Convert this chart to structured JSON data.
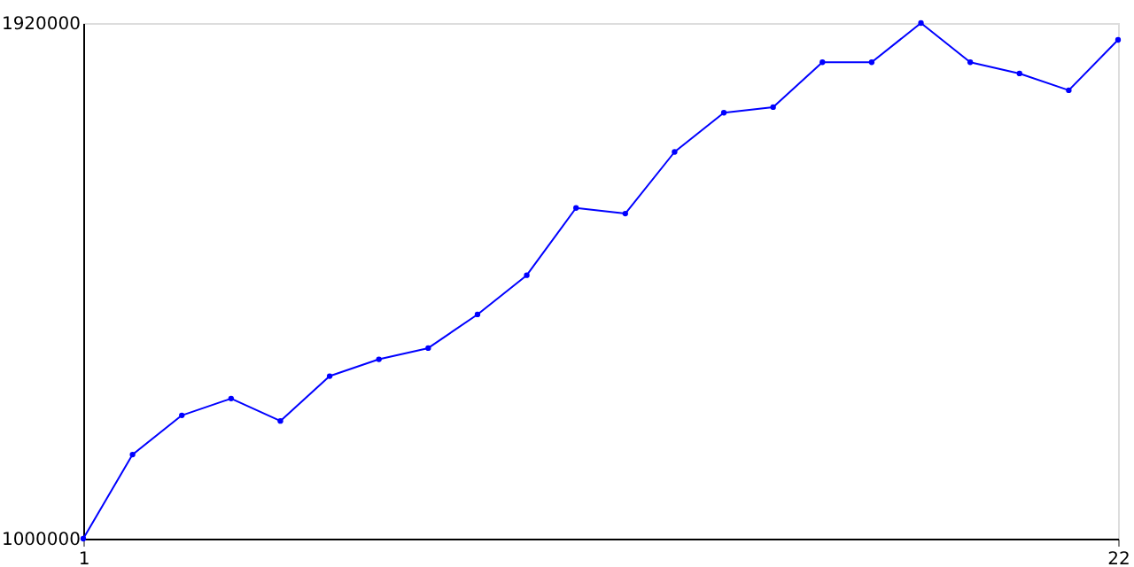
{
  "chart_data": {
    "type": "line",
    "x": [
      1,
      2,
      3,
      4,
      5,
      6,
      7,
      8,
      9,
      10,
      11,
      12,
      13,
      14,
      15,
      16,
      17,
      18,
      19,
      20,
      21,
      22
    ],
    "series": [
      {
        "color": "#0000ff",
        "values": [
          1000000,
          1150000,
          1220000,
          1250000,
          1210000,
          1290000,
          1320000,
          1340000,
          1400000,
          1470000,
          1590000,
          1580000,
          1690000,
          1760000,
          1770000,
          1850000,
          1850000,
          1920000,
          1850000,
          1830000,
          1800000,
          1890000
        ]
      }
    ],
    "xlim": [
      1,
      22
    ],
    "xticks": [
      1,
      22
    ],
    "ylim": [
      1000000,
      1920000
    ],
    "yticks": [
      1000000,
      1920000
    ],
    "marker": "circle",
    "line_style": "solid"
  }
}
